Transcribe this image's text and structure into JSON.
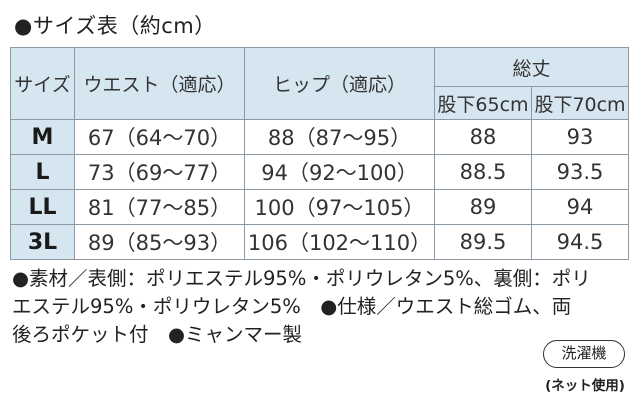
{
  "title": "●サイズ表（約cm）",
  "table": {
    "header": {
      "size": "サイズ",
      "waist": "ウエスト（適応）",
      "hip": "ヒップ（適応）",
      "length": "総丈",
      "inseam65": "股下65cm",
      "inseam70": "股下70cm"
    },
    "rows": [
      {
        "size": "M",
        "waist": "67（64〜70）",
        "hip": "88（87〜95）",
        "l65": "88",
        "l70": "93"
      },
      {
        "size": "L",
        "waist": "73（69〜77）",
        "hip": "94（92〜100）",
        "l65": "88.5",
        "l70": "93.5"
      },
      {
        "size": "LL",
        "waist": "81（77〜85）",
        "hip": "100（97〜105）",
        "l65": "89",
        "l70": "94"
      },
      {
        "size": "3L",
        "waist": "89（85〜93）",
        "hip": "106（102〜110）",
        "l65": "89.5",
        "l70": "94.5"
      }
    ]
  },
  "notes": [
    "●素材／表側：ポリエステル95%・ポリウレタン5%、裏側：ポリ",
    "エステル95%・ポリウレタン5%　●仕様／ウエスト総ゴム、両",
    "後ろポケット付　●ミャンマー製"
  ],
  "wash": {
    "label": "洗濯機",
    "note": "(ネット使用)"
  }
}
